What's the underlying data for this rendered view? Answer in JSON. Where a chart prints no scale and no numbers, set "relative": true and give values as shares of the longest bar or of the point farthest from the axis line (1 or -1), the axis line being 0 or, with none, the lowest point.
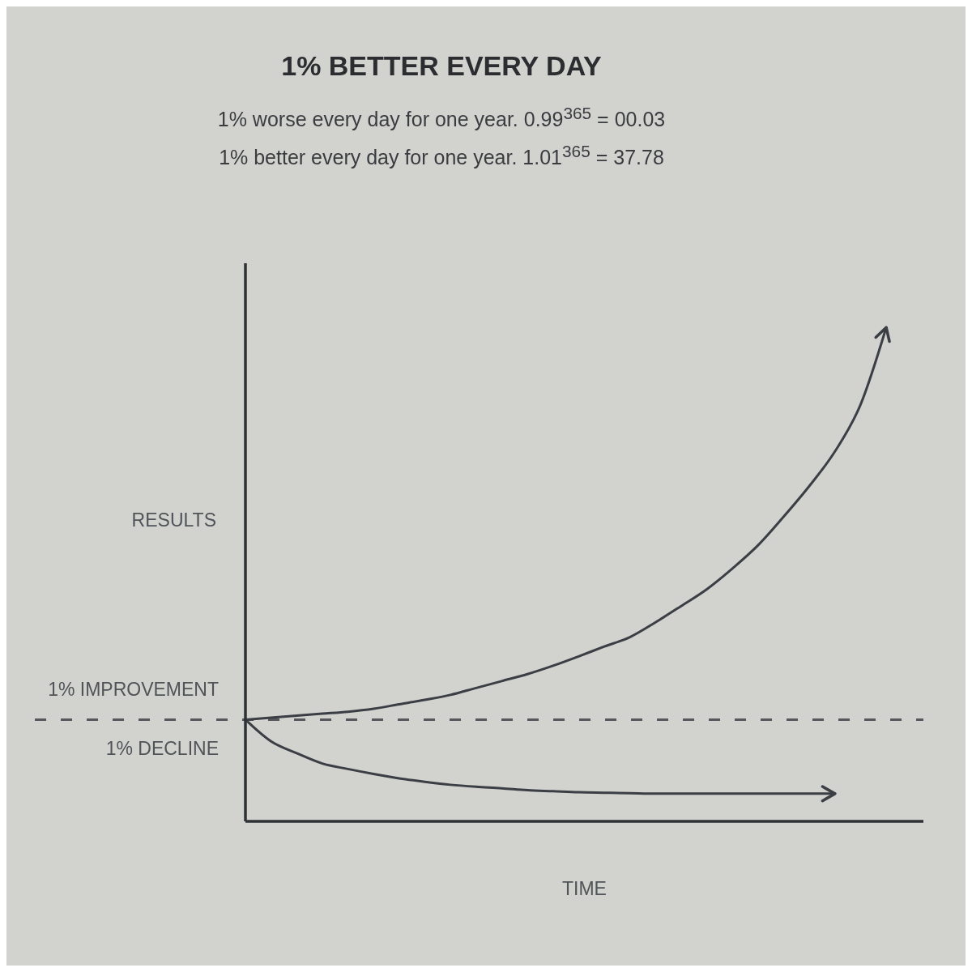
{
  "chart_data": {
    "type": "line",
    "title": "1% BETTER EVERY DAY",
    "annotations": [
      "1% worse every day for one year. 0.99$^{365}$ = 00.03",
      "1% better every day for one year. 1.01$^{365}$ = 37.78"
    ],
    "xlabel": "TIME",
    "ylabel": "RESULTS",
    "relative": true,
    "categories": [
      null,
      null,
      null,
      null,
      null,
      null,
      null,
      null,
      null,
      null,
      null,
      null,
      null,
      null,
      null,
      null,
      null,
      null,
      null,
      null,
      null,
      null,
      null,
      null,
      null,
      null
    ],
    "series": [
      {
        "name": "1% IMPROVEMENT",
        "color": "#3b3e44",
        "values": [
          0.206,
          0.21,
          0.214,
          0.218,
          0.222,
          0.228,
          0.237,
          0.246,
          0.256,
          0.27,
          0.284,
          0.298,
          0.315,
          0.334,
          0.354,
          0.373,
          0.403,
          0.436,
          0.47,
          0.512,
          0.559,
          0.617,
          0.679,
          0.749,
          0.844,
          1.0
        ]
      },
      {
        "name": "1% DECLINE",
        "color": "#3b3e44",
        "values": [
          0.206,
          0.162,
          0.138,
          0.117,
          0.106,
          0.096,
          0.087,
          0.08,
          0.074,
          0.07,
          0.067,
          0.063,
          0.061,
          0.059,
          0.058,
          0.057,
          0.056,
          0.056,
          0.056,
          0.056,
          0.056,
          0.056,
          0.056,
          0.056,
          null,
          null
        ]
      }
    ],
    "ref_lines": [
      {
        "axis": "y",
        "value": 0.206,
        "color": "#55585c",
        "line_style": "dashed"
      }
    ]
  }
}
